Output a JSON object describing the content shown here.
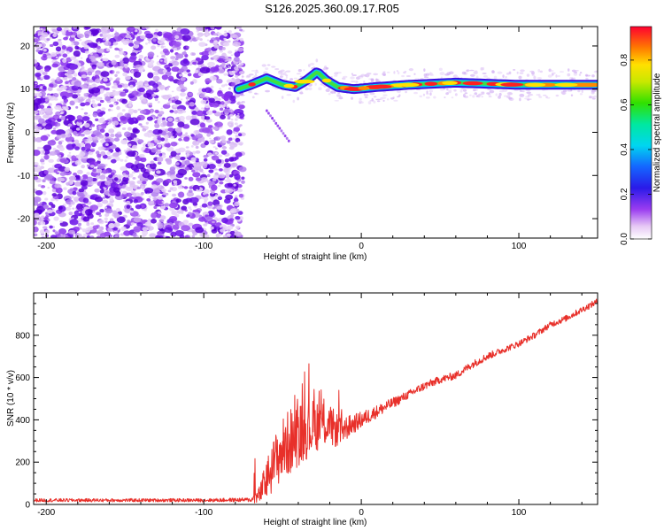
{
  "title": "S126.2025.360.09.17.R05",
  "chart_data": [
    {
      "type": "heatmap",
      "name": "spectrogram",
      "xlabel": "Height of straight line (km)",
      "ylabel": "Frequency (Hz)",
      "xlim": [
        -208,
        150
      ],
      "ylim": [
        -24.5,
        24.5
      ],
      "xticks": [
        -200,
        -100,
        0,
        100
      ],
      "yticks": [
        -20,
        -10,
        0,
        10,
        20
      ],
      "xtick_labels": [
        "-200",
        "-100",
        "0",
        "100"
      ],
      "ytick_labels": [
        "-20",
        "-10",
        "0",
        "10",
        "20"
      ],
      "noise_region_x": [
        -208,
        -75
      ],
      "ridge": {
        "description": "dominant frequency vs height",
        "points": [
          [
            -78,
            10
          ],
          [
            -70,
            11
          ],
          [
            -60,
            12.5
          ],
          [
            -50,
            11
          ],
          [
            -42,
            10.5
          ],
          [
            -35,
            12
          ],
          [
            -28,
            14
          ],
          [
            -22,
            12
          ],
          [
            -15,
            10.5
          ],
          [
            -5,
            10
          ],
          [
            10,
            10.5
          ],
          [
            30,
            11
          ],
          [
            60,
            11.5
          ],
          [
            100,
            11
          ],
          [
            150,
            11
          ]
        ]
      },
      "streak": [
        [
          -60,
          5
        ],
        [
          -46,
          -2
        ]
      ],
      "colorbar": {
        "label": "Normalized spectral amplitude",
        "range": [
          0,
          0.95
        ],
        "ticks": [
          0.0,
          0.2,
          0.4,
          0.6,
          0.8
        ],
        "tick_labels": [
          "0.0",
          "0.2",
          "0.4",
          "0.6",
          "0.8"
        ]
      }
    },
    {
      "type": "line",
      "name": "snr",
      "xlabel": "Height of straight line (km)",
      "ylabel": "SNR (10 * v/v)",
      "xlim": [
        -208,
        150
      ],
      "ylim": [
        0,
        1000
      ],
      "xticks": [
        -200,
        -100,
        0,
        100
      ],
      "yticks": [
        0,
        200,
        400,
        600,
        800
      ],
      "xtick_labels": [
        "-200",
        "-100",
        "0",
        "100"
      ],
      "ytick_labels": [
        "0",
        "200",
        "400",
        "600",
        "800"
      ],
      "color": "#e8302a",
      "series": [
        {
          "name": "SNR",
          "x": [
            -208,
            -150,
            -100,
            -70,
            -65,
            -60,
            -55,
            -50,
            -45,
            -40,
            -35,
            -30,
            -25,
            -20,
            -15,
            -10,
            -5,
            0,
            10,
            20,
            30,
            40,
            50,
            60,
            70,
            80,
            90,
            100,
            110,
            120,
            130,
            140,
            150
          ],
          "y": [
            20,
            20,
            20,
            22,
            40,
            120,
            200,
            260,
            300,
            330,
            350,
            370,
            390,
            370,
            350,
            360,
            380,
            400,
            440,
            480,
            520,
            560,
            590,
            610,
            660,
            700,
            730,
            760,
            800,
            850,
            880,
            920,
            960
          ],
          "noise": [
            8,
            8,
            8,
            10,
            40,
            100,
            130,
            150,
            160,
            150,
            140,
            130,
            120,
            100,
            80,
            60,
            45,
            40,
            30,
            25,
            20,
            20,
            18,
            18,
            18,
            18,
            15,
            15,
            15,
            15,
            15,
            15,
            15
          ]
        }
      ]
    }
  ]
}
